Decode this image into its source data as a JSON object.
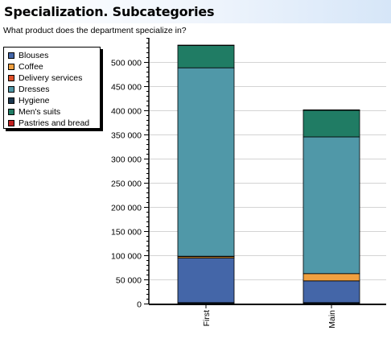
{
  "header": {
    "title": "Specialization. Subcategories",
    "subtitle": "What product does the department specialize in?"
  },
  "colors": {
    "Blouses": "#4466a8",
    "Coffee": "#f0a040",
    "Delivery services": "#e05028",
    "Dresses": "#5098a8",
    "Hygiene": "#1c3850",
    "Men's suits": "#207c64",
    "Pastries and bread": "#c02020"
  },
  "legend": {
    "items": [
      "Blouses",
      "Coffee",
      "Delivery services",
      "Dresses",
      "Hygiene",
      "Men's suits",
      "Pastries and bread"
    ]
  },
  "chart_data": {
    "type": "bar",
    "stacked": true,
    "categories": [
      "First",
      "Main"
    ],
    "series": [
      {
        "name": "Hygiene",
        "values": [
          2000,
          2000
        ]
      },
      {
        "name": "Blouses",
        "values": [
          92000,
          45000
        ]
      },
      {
        "name": "Coffee",
        "values": [
          3000,
          15000
        ]
      },
      {
        "name": "Delivery services",
        "values": [
          1000,
          0
        ]
      },
      {
        "name": "Dresses",
        "values": [
          390000,
          283000
        ]
      },
      {
        "name": "Men's suits",
        "values": [
          46000,
          55000
        ]
      },
      {
        "name": "Pastries and bread",
        "values": [
          1000,
          1000
        ]
      }
    ],
    "ylim": [
      0,
      550000
    ],
    "yticks": [
      0,
      50000,
      100000,
      150000,
      200000,
      250000,
      300000,
      350000,
      400000,
      450000,
      500000
    ],
    "ytick_labels": [
      "0",
      "50 000",
      "100 000",
      "150 000",
      "200 000",
      "250 000",
      "300 000",
      "350 000",
      "400 000",
      "450 000",
      "500 000"
    ],
    "grid": true,
    "legend_position": "top-left"
  }
}
